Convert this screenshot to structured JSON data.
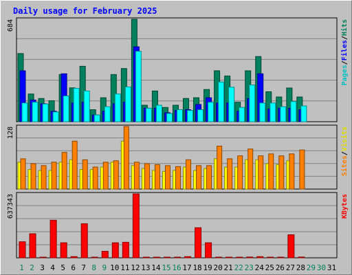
{
  "chart_data": {
    "type": "bar",
    "title": "Daily usage for February 2025",
    "x": [
      "1",
      "2",
      "3",
      "4",
      "5",
      "6",
      "7",
      "8",
      "9",
      "10",
      "11",
      "12",
      "13",
      "14",
      "15",
      "16",
      "17",
      "18",
      "19",
      "20",
      "21",
      "22",
      "23",
      "24",
      "25",
      "26",
      "27",
      "28",
      "29",
      "30",
      "31"
    ],
    "weekend_days": [
      1,
      2,
      8,
      9,
      15,
      16,
      22,
      23,
      29,
      30
    ],
    "panels": [
      {
        "name": "hits-files-pages",
        "max_label": "684",
        "ylim": [
          0,
          684
        ],
        "legend": [
          "Pages",
          "Files",
          "Hits"
        ],
        "series": [
          {
            "name": "Hits",
            "color": "#00805c",
            "values": [
              455,
              185,
              155,
              140,
              315,
              226,
              370,
              80,
              160,
              315,
              355,
              684,
              110,
              205,
              95,
              110,
              155,
              160,
              215,
              340,
              305,
              130,
              340,
              435,
              200,
              165,
              225,
              165,
              0,
              0,
              0
            ]
          },
          {
            "name": "Files",
            "color": "#0000ff",
            "values": [
              340,
              145,
              120,
              70,
              320,
              125,
              130,
              45,
              70,
              120,
              130,
              500,
              90,
              90,
              60,
              75,
              80,
              115,
              160,
              125,
              125,
              70,
              155,
              320,
              85,
              90,
              90,
              80,
              0,
              0,
              0
            ]
          },
          {
            "name": "Pages",
            "color": "#00ffff",
            "values": [
              125,
              130,
              118,
              65,
              172,
              223,
              205,
              45,
              100,
              185,
              232,
              470,
              90,
              110,
              55,
              80,
              75,
              80,
              130,
              265,
              230,
              95,
              245,
              125,
              125,
              100,
              135,
              105,
              0,
              0,
              0
            ]
          }
        ]
      },
      {
        "name": "visits-sites",
        "max_label": "128",
        "ylim": [
          0,
          128
        ],
        "legend": [
          "Sites",
          "Visits"
        ],
        "series": [
          {
            "name": "Visits",
            "color": "#ffff00",
            "values": [
              55,
              40,
              38,
              38,
              55,
              60,
              40,
              40,
              45,
              55,
              98,
              48,
              42,
              38,
              36,
              38,
              45,
              38,
              42,
              62,
              45,
              45,
              60,
              60,
              52,
              50,
              58,
              0,
              0,
              0,
              0
            ]
          },
          {
            "name": "Sites",
            "color": "#ff8000",
            "values": [
              62,
              52,
              48,
              55,
              75,
              98,
              60,
              45,
              55,
              58,
              128,
              55,
              52,
              50,
              48,
              46,
              60,
              48,
              48,
              88,
              62,
              68,
              82,
              68,
              72,
              68,
              72,
              80,
              0,
              0,
              0
            ]
          }
        ]
      },
      {
        "name": "kbytes",
        "max_label": "637343",
        "ylim": [
          0,
          637343
        ],
        "legend": [
          "KBytes"
        ],
        "series": [
          {
            "name": "KBytes",
            "color": "#ff0000",
            "values": [
              160000,
              240000,
              5000,
              375000,
              150000,
              12000,
              340000,
              5000,
              65000,
              150000,
              155000,
              637343,
              5000,
              5000,
              5000,
              5000,
              12000,
              300000,
              150000,
              5000,
              5000,
              5000,
              8000,
              12000,
              5000,
              5000,
              230000,
              8000,
              0,
              0,
              0
            ]
          }
        ]
      }
    ],
    "grid": true
  }
}
